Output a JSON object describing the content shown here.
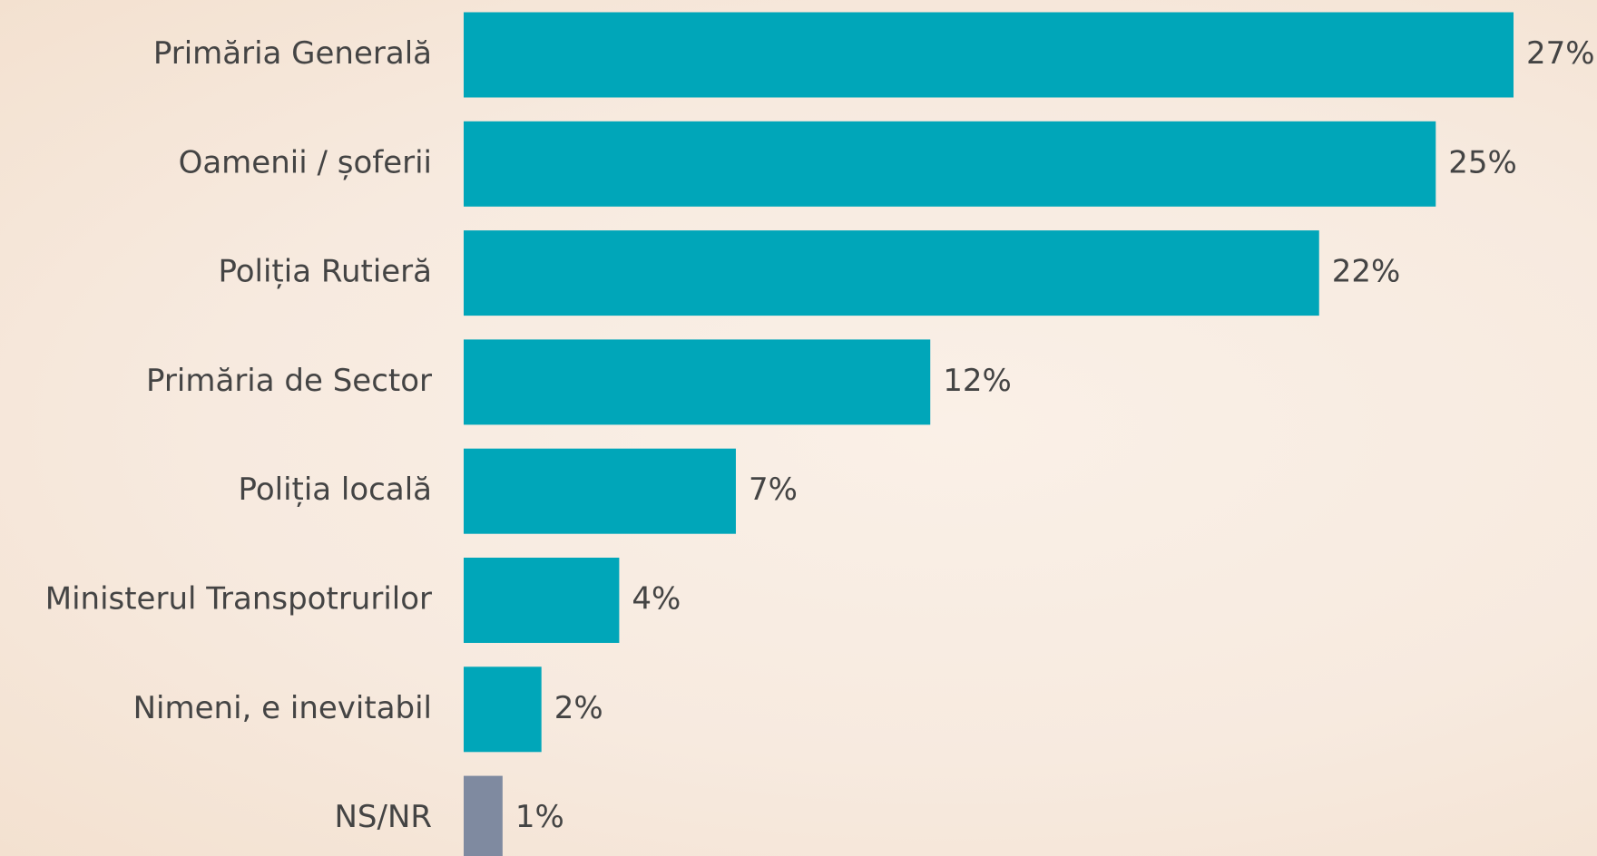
{
  "chart_data": {
    "type": "bar",
    "orientation": "horizontal",
    "categories": [
      "Primăria Generală",
      "Oamenii / șoferii",
      "Poliția Rutieră",
      "Primăria de Sector",
      "Poliția locală",
      "Ministerul Transpotrurilor",
      "Nimeni, e inevitabil",
      "NS/NR"
    ],
    "values": [
      27,
      25,
      22,
      12,
      7,
      4,
      2,
      1
    ],
    "value_labels": [
      "27%",
      "25%",
      "22%",
      "12%",
      "7%",
      "4%",
      "2%",
      "1%"
    ],
    "colors": [
      "#00a6b9",
      "#00a6b9",
      "#00a6b9",
      "#00a6b9",
      "#00a6b9",
      "#00a6b9",
      "#00a6b9",
      "#7f8aa0"
    ]
  }
}
